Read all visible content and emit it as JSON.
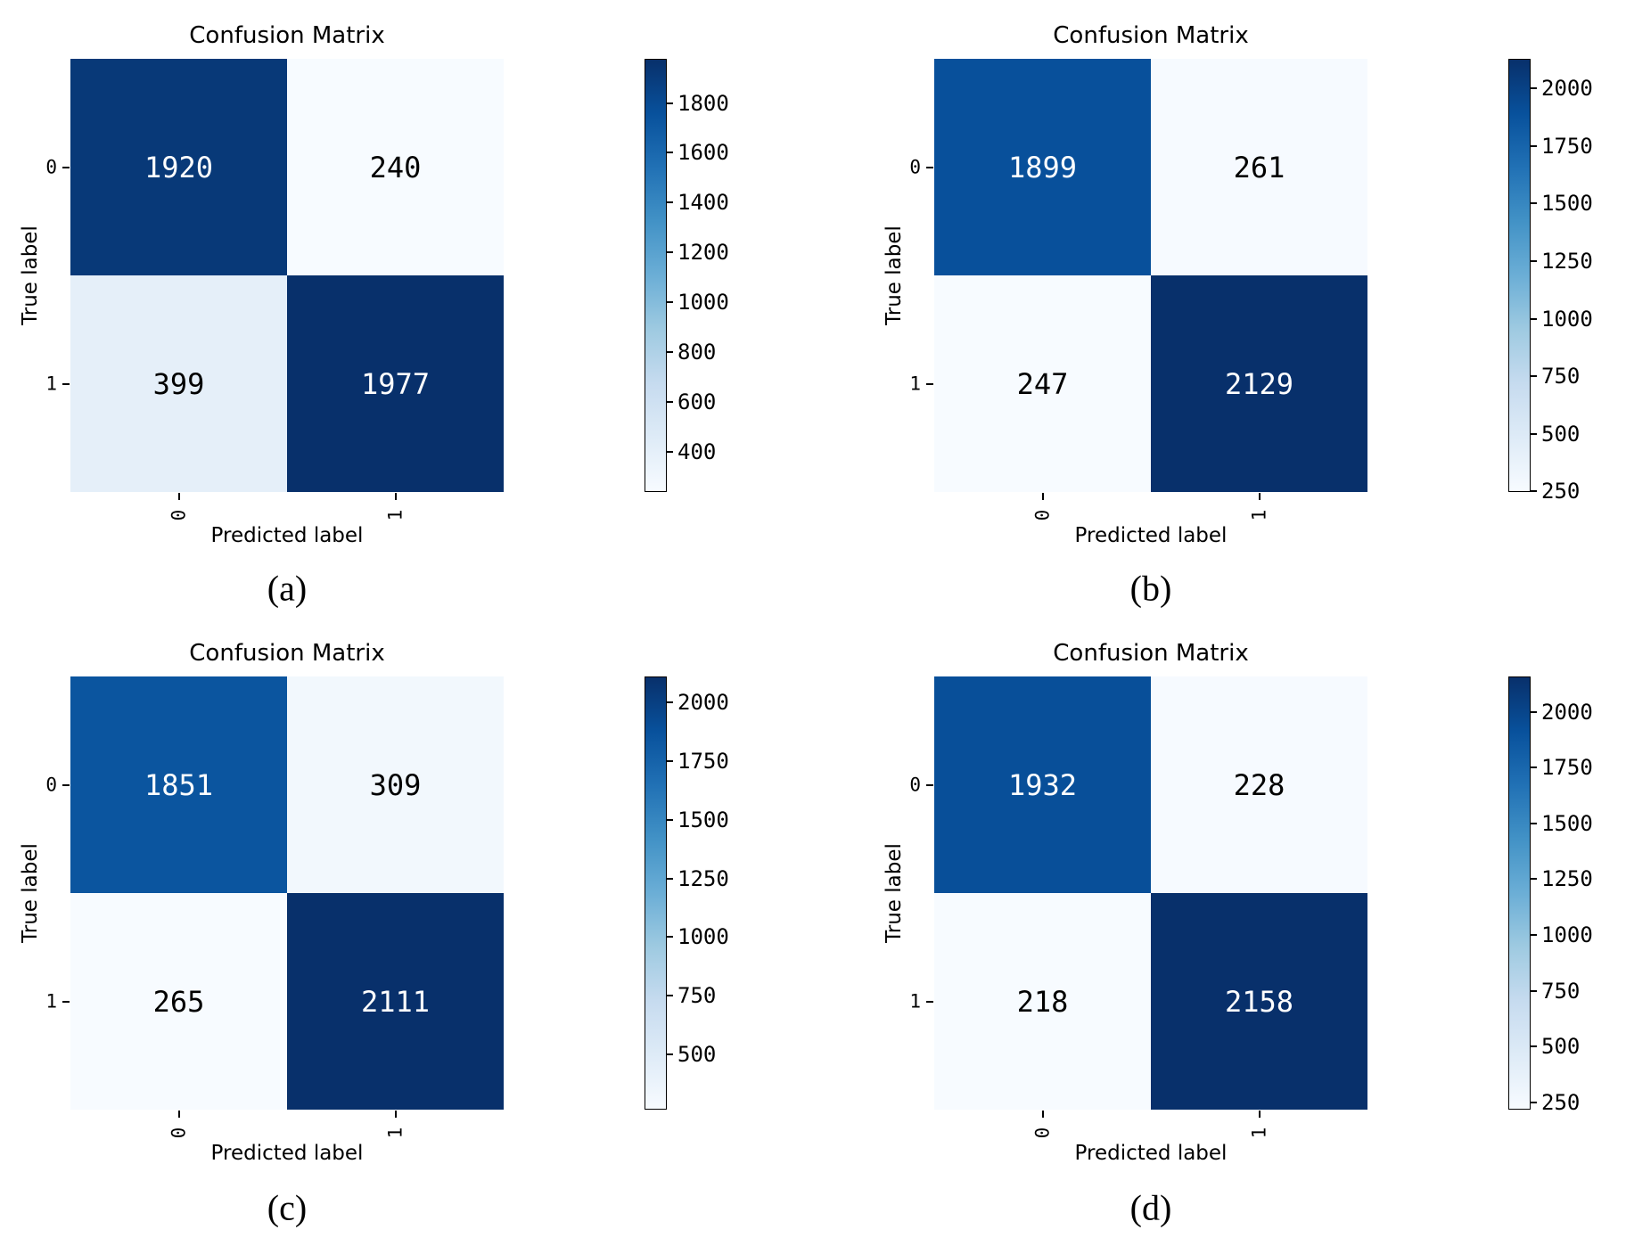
{
  "figure": {
    "background": "#ffffff",
    "colormap": "Blues"
  },
  "palette": {
    "blues_colormap_anchors": [
      "#f7fbff",
      "#deebf7",
      "#c6dbef",
      "#9ecae1",
      "#6baed6",
      "#4292c6",
      "#2171b5",
      "#08519c",
      "#08306b"
    ],
    "value_text_on_dark": "#ffffff",
    "value_text_on_light": "#000000",
    "axis_color": "#000000"
  },
  "chart_data": [
    {
      "type": "heatmap",
      "panel": "a",
      "caption": "(a)",
      "title": "Confusion Matrix",
      "xlabel": "Predicted label",
      "ylabel": "True label",
      "x_tick_labels": [
        "0",
        "1"
      ],
      "y_tick_labels": [
        "0",
        "1"
      ],
      "matrix": [
        [
          1920,
          240
        ],
        [
          399,
          1977
        ]
      ],
      "vmin": 240,
      "vmax": 1977,
      "colorbar_ticks": [
        1800,
        1600,
        1400,
        1200,
        1000,
        800,
        600,
        400
      ]
    },
    {
      "type": "heatmap",
      "panel": "b",
      "caption": "(b)",
      "title": "Confusion Matrix",
      "xlabel": "Predicted label",
      "ylabel": "True label",
      "x_tick_labels": [
        "0",
        "1"
      ],
      "y_tick_labels": [
        "0",
        "1"
      ],
      "matrix": [
        [
          1899,
          261
        ],
        [
          247,
          2129
        ]
      ],
      "vmin": 247,
      "vmax": 2129,
      "colorbar_ticks": [
        2000,
        1750,
        1500,
        1250,
        1000,
        750,
        500,
        250
      ]
    },
    {
      "type": "heatmap",
      "panel": "c",
      "caption": "(c)",
      "title": "Confusion Matrix",
      "xlabel": "Predicted label",
      "ylabel": "True label",
      "x_tick_labels": [
        "0",
        "1"
      ],
      "y_tick_labels": [
        "0",
        "1"
      ],
      "matrix": [
        [
          1851,
          309
        ],
        [
          265,
          2111
        ]
      ],
      "vmin": 265,
      "vmax": 2111,
      "colorbar_ticks": [
        2000,
        1750,
        1500,
        1250,
        1000,
        750,
        500
      ]
    },
    {
      "type": "heatmap",
      "panel": "d",
      "caption": "(d)",
      "title": "Confusion Matrix",
      "xlabel": "Predicted label",
      "ylabel": "True label",
      "x_tick_labels": [
        "0",
        "1"
      ],
      "y_tick_labels": [
        "0",
        "1"
      ],
      "matrix": [
        [
          1932,
          228
        ],
        [
          218,
          2158
        ]
      ],
      "vmin": 218,
      "vmax": 2158,
      "colorbar_ticks": [
        2000,
        1750,
        1500,
        1250,
        1000,
        750,
        500,
        250
      ]
    }
  ]
}
